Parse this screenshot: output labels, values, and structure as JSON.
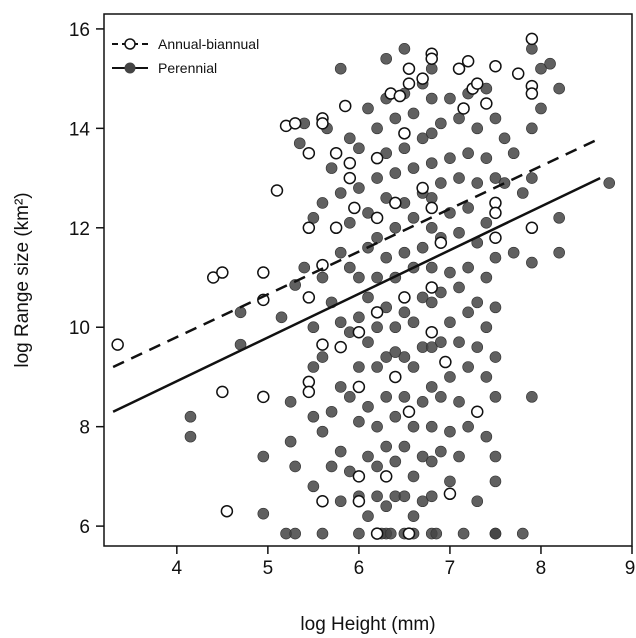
{
  "chart_data": {
    "type": "scatter",
    "title": "",
    "xlabel": "log Height (mm)",
    "ylabel": "log Range size (km²)",
    "xlim": [
      3.2,
      9.0
    ],
    "ylim": [
      5.6,
      16.3
    ],
    "x_ticks": [
      4,
      5,
      6,
      7,
      8,
      9
    ],
    "y_ticks": [
      6,
      8,
      10,
      12,
      14,
      16
    ],
    "legend_position": "top-left",
    "grid": false,
    "series": [
      {
        "name": "Annual-biannual",
        "marker": "open-circle",
        "line_style": "dashed",
        "color": "#111111",
        "fit_line": {
          "x": [
            3.3,
            8.65
          ],
          "y": [
            9.2,
            13.8
          ]
        },
        "points": [
          [
            3.35,
            9.65
          ],
          [
            4.4,
            11.0
          ],
          [
            4.5,
            11.1
          ],
          [
            4.5,
            8.7
          ],
          [
            4.55,
            6.3
          ],
          [
            4.95,
            11.1
          ],
          [
            4.95,
            10.55
          ],
          [
            4.95,
            8.6
          ],
          [
            5.1,
            12.75
          ],
          [
            5.2,
            14.05
          ],
          [
            5.3,
            14.1
          ],
          [
            5.45,
            13.5
          ],
          [
            5.45,
            12.0
          ],
          [
            5.45,
            10.6
          ],
          [
            5.45,
            8.9
          ],
          [
            5.45,
            8.7
          ],
          [
            5.6,
            14.2
          ],
          [
            5.6,
            14.1
          ],
          [
            5.6,
            11.25
          ],
          [
            5.6,
            9.65
          ],
          [
            5.6,
            6.5
          ],
          [
            5.75,
            13.5
          ],
          [
            5.75,
            12.0
          ],
          [
            5.8,
            9.6
          ],
          [
            5.85,
            14.45
          ],
          [
            5.9,
            13.3
          ],
          [
            5.9,
            13.0
          ],
          [
            5.95,
            12.4
          ],
          [
            6.0,
            9.9
          ],
          [
            6.0,
            8.8
          ],
          [
            6.0,
            7.0
          ],
          [
            6.0,
            6.5
          ],
          [
            6.2,
            13.4
          ],
          [
            6.2,
            12.2
          ],
          [
            6.2,
            10.3
          ],
          [
            6.2,
            5.85
          ],
          [
            6.3,
            7.0
          ],
          [
            6.35,
            14.7
          ],
          [
            6.4,
            12.5
          ],
          [
            6.4,
            9.0
          ],
          [
            6.45,
            14.65
          ],
          [
            6.5,
            13.9
          ],
          [
            6.5,
            10.6
          ],
          [
            6.55,
            15.2
          ],
          [
            6.55,
            14.9
          ],
          [
            6.55,
            8.3
          ],
          [
            6.55,
            5.85
          ],
          [
            6.7,
            15.0
          ],
          [
            6.7,
            12.8
          ],
          [
            6.8,
            15.5
          ],
          [
            6.8,
            15.4
          ],
          [
            6.8,
            12.4
          ],
          [
            6.8,
            10.8
          ],
          [
            6.8,
            9.9
          ],
          [
            6.9,
            11.7
          ],
          [
            6.95,
            9.3
          ],
          [
            7.0,
            6.65
          ],
          [
            7.1,
            15.2
          ],
          [
            7.15,
            14.4
          ],
          [
            7.2,
            15.35
          ],
          [
            7.25,
            14.8
          ],
          [
            7.3,
            14.9
          ],
          [
            7.3,
            8.3
          ],
          [
            7.4,
            14.5
          ],
          [
            7.5,
            15.25
          ],
          [
            7.5,
            12.5
          ],
          [
            7.5,
            12.3
          ],
          [
            7.5,
            11.8
          ],
          [
            7.75,
            15.1
          ],
          [
            7.9,
            15.8
          ],
          [
            7.9,
            14.85
          ],
          [
            7.9,
            14.7
          ],
          [
            7.9,
            12.0
          ]
        ]
      },
      {
        "name": "Perennial",
        "marker": "filled-circle",
        "line_style": "solid",
        "color": "#444444",
        "fit_line": {
          "x": [
            3.3,
            8.65
          ],
          "y": [
            8.3,
            13.0
          ]
        },
        "points": [
          [
            4.15,
            8.2
          ],
          [
            4.15,
            7.8
          ],
          [
            4.7,
            10.3
          ],
          [
            4.7,
            9.65
          ],
          [
            4.95,
            7.4
          ],
          [
            4.95,
            6.25
          ],
          [
            5.15,
            10.2
          ],
          [
            5.25,
            8.5
          ],
          [
            5.25,
            7.7
          ],
          [
            5.3,
            10.85
          ],
          [
            5.3,
            7.2
          ],
          [
            5.35,
            13.7
          ],
          [
            5.4,
            14.1
          ],
          [
            5.4,
            11.2
          ],
          [
            5.5,
            12.2
          ],
          [
            5.5,
            10.0
          ],
          [
            5.5,
            9.2
          ],
          [
            5.5,
            8.2
          ],
          [
            5.5,
            6.8
          ],
          [
            5.6,
            12.5
          ],
          [
            5.6,
            11.0
          ],
          [
            5.6,
            9.4
          ],
          [
            5.6,
            7.9
          ],
          [
            5.6,
            6.5
          ],
          [
            5.65,
            14.0
          ],
          [
            5.7,
            13.2
          ],
          [
            5.7,
            10.5
          ],
          [
            5.7,
            8.3
          ],
          [
            5.7,
            7.2
          ],
          [
            5.8,
            15.2
          ],
          [
            5.8,
            12.7
          ],
          [
            5.8,
            11.5
          ],
          [
            5.8,
            10.1
          ],
          [
            5.8,
            8.8
          ],
          [
            5.8,
            7.5
          ],
          [
            5.8,
            6.5
          ],
          [
            5.9,
            13.8
          ],
          [
            5.9,
            12.1
          ],
          [
            5.9,
            11.2
          ],
          [
            5.9,
            9.9
          ],
          [
            5.9,
            8.6
          ],
          [
            5.9,
            7.1
          ],
          [
            6.0,
            13.6
          ],
          [
            6.0,
            12.8
          ],
          [
            6.0,
            11.0
          ],
          [
            6.0,
            10.2
          ],
          [
            6.0,
            9.2
          ],
          [
            6.0,
            8.1
          ],
          [
            6.0,
            6.6
          ],
          [
            6.0,
            5.85
          ],
          [
            6.1,
            14.4
          ],
          [
            6.1,
            12.3
          ],
          [
            6.1,
            11.6
          ],
          [
            6.1,
            10.6
          ],
          [
            6.1,
            9.7
          ],
          [
            6.1,
            8.4
          ],
          [
            6.1,
            7.4
          ],
          [
            6.1,
            6.2
          ],
          [
            6.2,
            14.0
          ],
          [
            6.2,
            13.0
          ],
          [
            6.2,
            11.8
          ],
          [
            6.2,
            11.0
          ],
          [
            6.2,
            10.0
          ],
          [
            6.2,
            9.2
          ],
          [
            6.2,
            8.0
          ],
          [
            6.2,
            7.2
          ],
          [
            6.2,
            6.6
          ],
          [
            6.3,
            15.4
          ],
          [
            6.3,
            14.6
          ],
          [
            6.3,
            13.5
          ],
          [
            6.3,
            12.6
          ],
          [
            6.3,
            11.4
          ],
          [
            6.3,
            10.4
          ],
          [
            6.3,
            9.4
          ],
          [
            6.3,
            8.6
          ],
          [
            6.3,
            7.6
          ],
          [
            6.3,
            6.4
          ],
          [
            6.3,
            5.85
          ],
          [
            6.4,
            14.2
          ],
          [
            6.4,
            13.1
          ],
          [
            6.4,
            12.0
          ],
          [
            6.4,
            11.0
          ],
          [
            6.4,
            10.0
          ],
          [
            6.4,
            9.5
          ],
          [
            6.4,
            8.2
          ],
          [
            6.4,
            7.3
          ],
          [
            6.4,
            6.6
          ],
          [
            6.5,
            15.6
          ],
          [
            6.5,
            14.7
          ],
          [
            6.5,
            13.6
          ],
          [
            6.5,
            12.5
          ],
          [
            6.5,
            11.5
          ],
          [
            6.5,
            10.3
          ],
          [
            6.5,
            9.4
          ],
          [
            6.5,
            8.6
          ],
          [
            6.5,
            7.6
          ],
          [
            6.5,
            6.6
          ],
          [
            6.5,
            5.85
          ],
          [
            6.6,
            14.3
          ],
          [
            6.6,
            13.2
          ],
          [
            6.6,
            12.2
          ],
          [
            6.6,
            11.2
          ],
          [
            6.6,
            10.1
          ],
          [
            6.6,
            9.2
          ],
          [
            6.6,
            8.0
          ],
          [
            6.6,
            7.0
          ],
          [
            6.6,
            6.2
          ],
          [
            6.7,
            14.9
          ],
          [
            6.7,
            13.8
          ],
          [
            6.7,
            12.7
          ],
          [
            6.7,
            11.6
          ],
          [
            6.7,
            10.6
          ],
          [
            6.7,
            9.6
          ],
          [
            6.7,
            8.5
          ],
          [
            6.7,
            7.4
          ],
          [
            6.7,
            6.5
          ],
          [
            6.8,
            15.2
          ],
          [
            6.8,
            14.6
          ],
          [
            6.8,
            13.9
          ],
          [
            6.8,
            13.3
          ],
          [
            6.8,
            12.6
          ],
          [
            6.8,
            12.0
          ],
          [
            6.8,
            11.2
          ],
          [
            6.8,
            10.5
          ],
          [
            6.8,
            9.6
          ],
          [
            6.8,
            8.8
          ],
          [
            6.8,
            8.0
          ],
          [
            6.8,
            7.3
          ],
          [
            6.8,
            6.6
          ],
          [
            6.8,
            5.85
          ],
          [
            6.9,
            14.1
          ],
          [
            6.9,
            12.9
          ],
          [
            6.9,
            11.8
          ],
          [
            6.9,
            10.7
          ],
          [
            6.9,
            9.7
          ],
          [
            6.9,
            8.6
          ],
          [
            6.9,
            7.5
          ],
          [
            7.0,
            14.6
          ],
          [
            7.0,
            13.4
          ],
          [
            7.0,
            12.3
          ],
          [
            7.0,
            11.1
          ],
          [
            7.0,
            10.1
          ],
          [
            7.0,
            9.0
          ],
          [
            7.0,
            7.9
          ],
          [
            7.0,
            6.9
          ],
          [
            7.1,
            14.2
          ],
          [
            7.1,
            13.0
          ],
          [
            7.1,
            11.9
          ],
          [
            7.1,
            10.8
          ],
          [
            7.1,
            9.7
          ],
          [
            7.1,
            8.5
          ],
          [
            7.1,
            7.4
          ],
          [
            7.2,
            14.7
          ],
          [
            7.2,
            13.5
          ],
          [
            7.2,
            12.4
          ],
          [
            7.2,
            11.2
          ],
          [
            7.2,
            10.3
          ],
          [
            7.2,
            9.2
          ],
          [
            7.2,
            8.0
          ],
          [
            7.3,
            14.0
          ],
          [
            7.3,
            12.9
          ],
          [
            7.3,
            11.7
          ],
          [
            7.3,
            10.5
          ],
          [
            7.3,
            9.6
          ],
          [
            7.3,
            6.5
          ],
          [
            7.4,
            14.8
          ],
          [
            7.4,
            13.4
          ],
          [
            7.4,
            12.1
          ],
          [
            7.4,
            11.0
          ],
          [
            7.4,
            10.0
          ],
          [
            7.4,
            9.0
          ],
          [
            7.4,
            7.8
          ],
          [
            7.5,
            14.2
          ],
          [
            7.5,
            13.0
          ],
          [
            7.5,
            11.4
          ],
          [
            7.5,
            10.4
          ],
          [
            7.5,
            9.4
          ],
          [
            7.5,
            8.6
          ],
          [
            7.5,
            7.4
          ],
          [
            7.5,
            6.9
          ],
          [
            7.5,
            5.85
          ],
          [
            7.6,
            13.8
          ],
          [
            7.6,
            12.9
          ],
          [
            7.7,
            13.5
          ],
          [
            7.7,
            11.5
          ],
          [
            7.8,
            12.7
          ],
          [
            7.9,
            15.6
          ],
          [
            7.9,
            14.0
          ],
          [
            7.9,
            13.0
          ],
          [
            7.9,
            11.3
          ],
          [
            7.9,
            8.6
          ],
          [
            8.0,
            15.2
          ],
          [
            8.0,
            14.4
          ],
          [
            8.1,
            15.3
          ],
          [
            8.2,
            14.8
          ],
          [
            8.2,
            12.2
          ],
          [
            8.2,
            11.5
          ],
          [
            8.75,
            12.9
          ],
          [
            5.2,
            5.85
          ],
          [
            5.3,
            5.85
          ],
          [
            5.6,
            5.85
          ],
          [
            6.25,
            5.85
          ],
          [
            6.35,
            5.85
          ],
          [
            6.6,
            5.85
          ],
          [
            6.85,
            5.85
          ],
          [
            7.15,
            5.85
          ],
          [
            7.5,
            5.85
          ],
          [
            7.8,
            5.85
          ]
        ]
      }
    ]
  }
}
